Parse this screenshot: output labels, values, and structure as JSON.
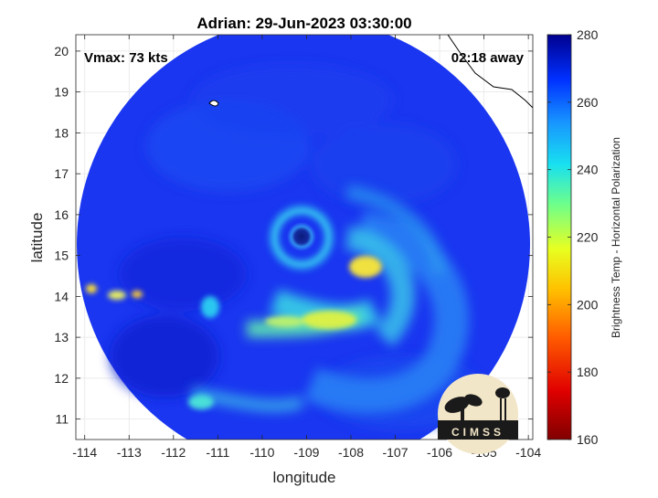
{
  "chart_data": {
    "type": "heatmap",
    "title": "Adrian: 29-Jun-2023 03:30:00",
    "xlabel": "longitude",
    "ylabel": "latitude",
    "xlim": [
      -114.2,
      -103.9
    ],
    "ylim": [
      10.5,
      20.4
    ],
    "xticks": [
      -114,
      -113,
      -112,
      -111,
      -110,
      -109,
      -108,
      -107,
      -106,
      -105,
      -104
    ],
    "yticks": [
      11,
      12,
      13,
      14,
      15,
      16,
      17,
      18,
      19,
      20
    ],
    "grid": true,
    "annotations": {
      "vmax": "Vmax: 73 kts",
      "time_away": "02:18 away"
    },
    "storm_center": {
      "lon": -109.0,
      "lat": 15.45
    },
    "colorbar": {
      "label": "Brightness Temp - Horizontal Polarization",
      "min": 160,
      "max": 280,
      "ticks": [
        160,
        180,
        200,
        220,
        240,
        260,
        280
      ]
    },
    "logo_text": "CIMSS"
  }
}
